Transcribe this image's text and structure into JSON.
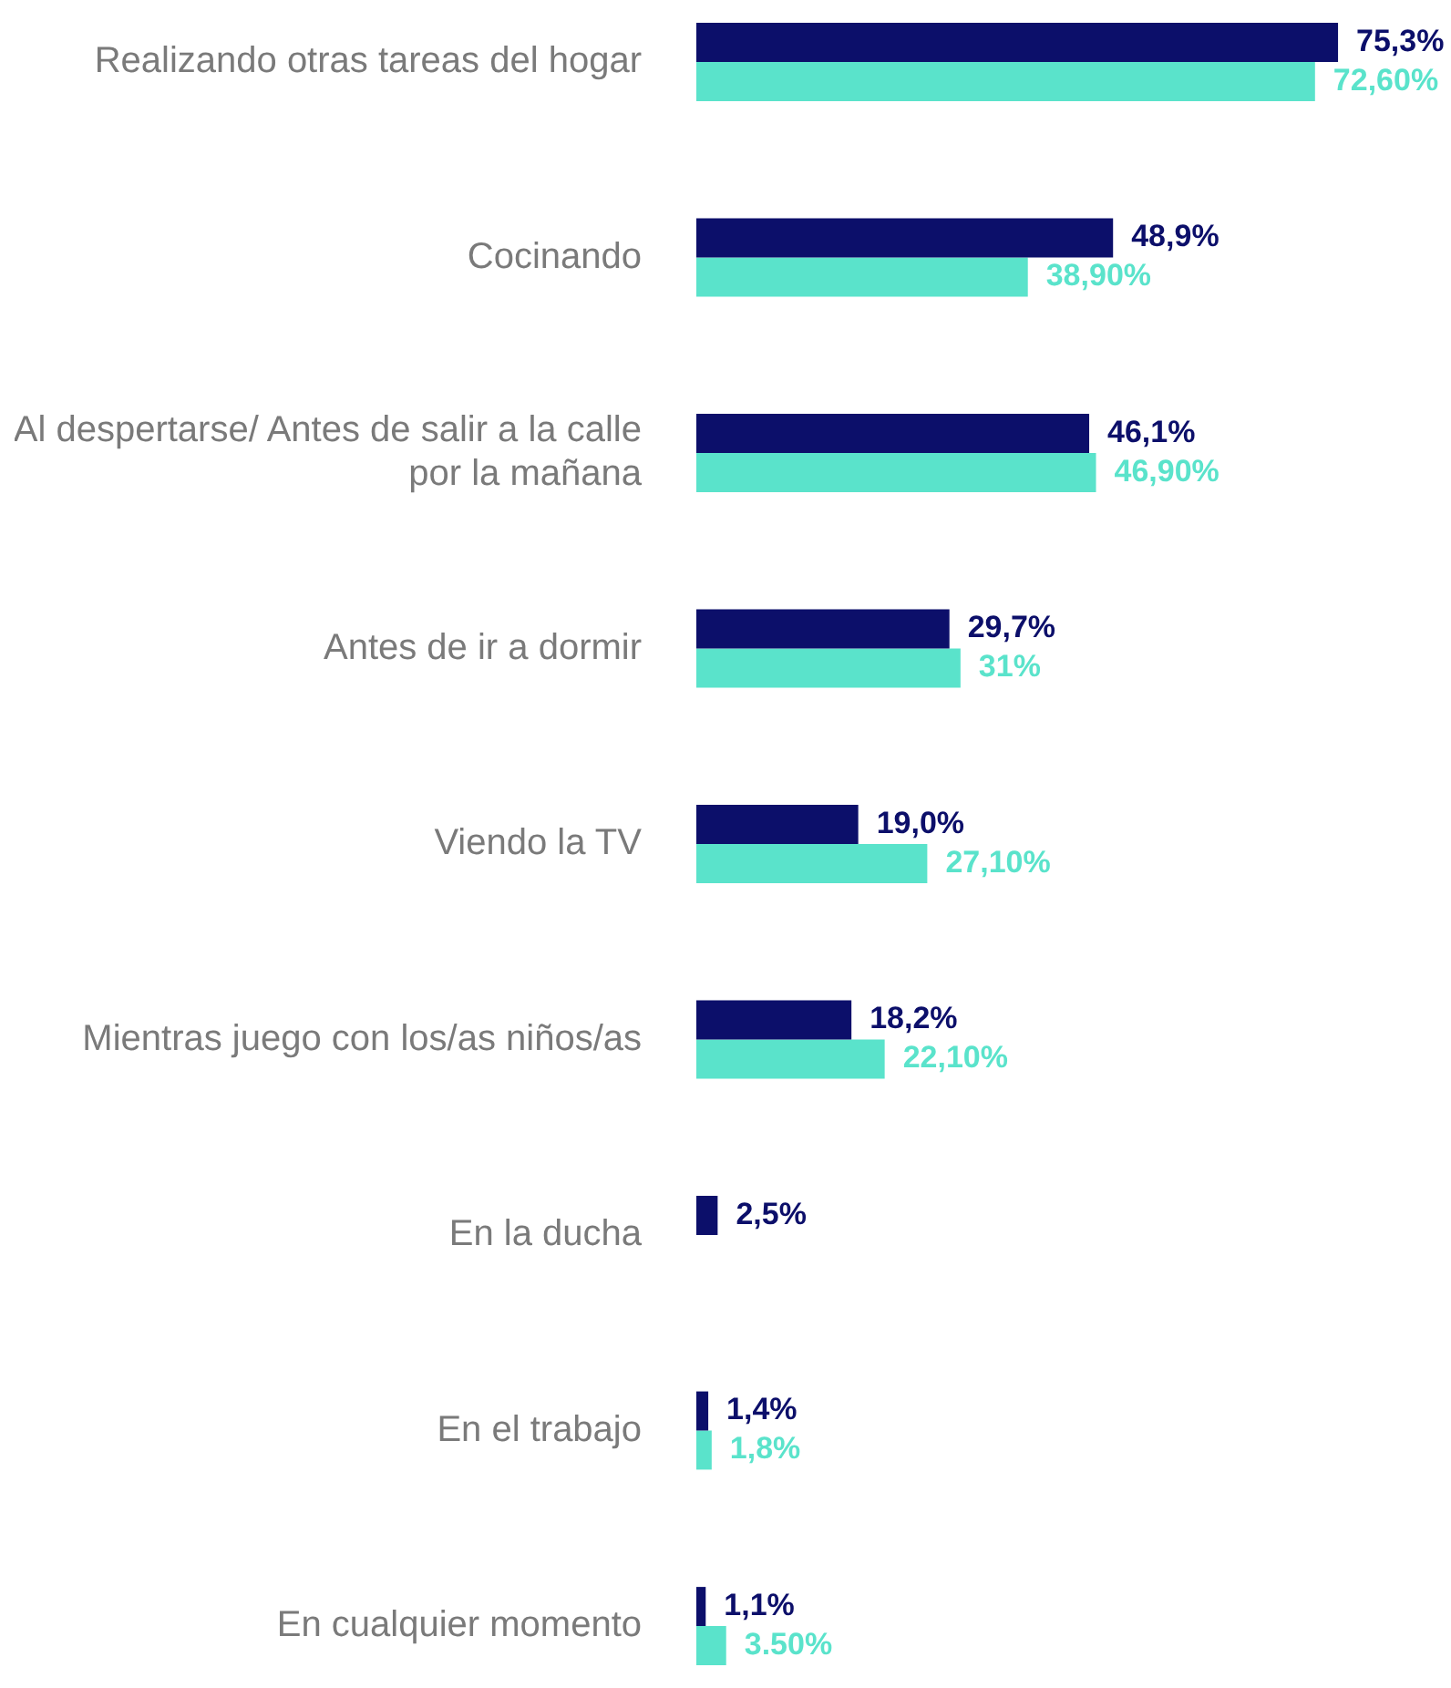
{
  "chart_data": {
    "type": "bar",
    "orientation": "horizontal",
    "categories": [
      "Realizando otras tareas del hogar",
      "Cocinando",
      "Al despertarse/ Antes de salir a la calle por la mañana",
      "Antes de ir a dormir",
      "Viendo la TV",
      "Mientras juego con los/as niños/as",
      "En la ducha",
      "En el trabajo",
      "En cualquier momento"
    ],
    "series": [
      {
        "color": "#0c0f6a",
        "values": [
          75.3,
          48.9,
          46.1,
          29.7,
          19.0,
          18.2,
          2.5,
          1.4,
          1.1
        ],
        "value_labels": [
          "75,3%",
          "48,9%",
          "46,1%",
          "29,7%",
          "19,0%",
          "18,2%",
          "2,5%",
          "1,4%",
          "1,1%"
        ]
      },
      {
        "color": "#5ae3cb",
        "values": [
          72.6,
          38.9,
          46.9,
          31,
          27.1,
          22.1,
          null,
          1.8,
          3.5
        ],
        "value_labels": [
          "72,60%",
          "38,90%",
          "46,90%",
          "31%",
          "27,10%",
          "22,10%",
          null,
          "1,8%",
          "3.50%"
        ]
      }
    ]
  }
}
